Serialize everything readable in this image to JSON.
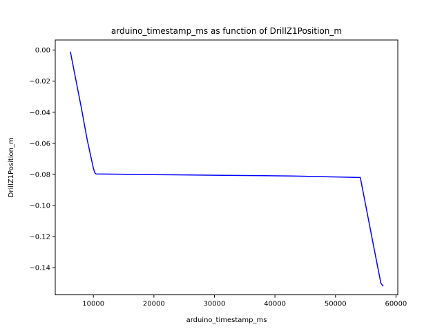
{
  "chart_data": {
    "type": "line",
    "title": "arduino_timestamp_ms as function of DrillZ1Position_m",
    "xlabel": "arduino_timestamp_ms",
    "ylabel": "DrillZ1Position_m",
    "xlim": [
      3700,
      60300
    ],
    "ylim": [
      -0.1575,
      0.0065
    ],
    "xticks": [
      10000,
      20000,
      30000,
      40000,
      50000,
      60000
    ],
    "xtick_labels": [
      "10000",
      "20000",
      "30000",
      "40000",
      "50000",
      "60000"
    ],
    "yticks": [
      0.0,
      -0.02,
      -0.04,
      -0.06,
      -0.08,
      -0.1,
      -0.12,
      -0.14
    ],
    "ytick_labels": [
      "0.00",
      "−0.02",
      "−0.04",
      "−0.06",
      "−0.08",
      "−0.10",
      "−0.12",
      "−0.14"
    ],
    "grid": false,
    "series": [
      {
        "color": "#0000ff",
        "x": [
          6200,
          7000,
          8000,
          9000,
          10000,
          10250,
          10450,
          20000,
          30000,
          43000,
          54100,
          55000,
          56000,
          57000,
          57500,
          57900
        ],
        "y": [
          -0.001,
          -0.017,
          -0.037,
          -0.058,
          -0.076,
          -0.079,
          -0.0797,
          -0.0801,
          -0.0805,
          -0.081,
          -0.082,
          -0.1,
          -0.12,
          -0.14,
          -0.15,
          -0.152
        ]
      }
    ]
  }
}
